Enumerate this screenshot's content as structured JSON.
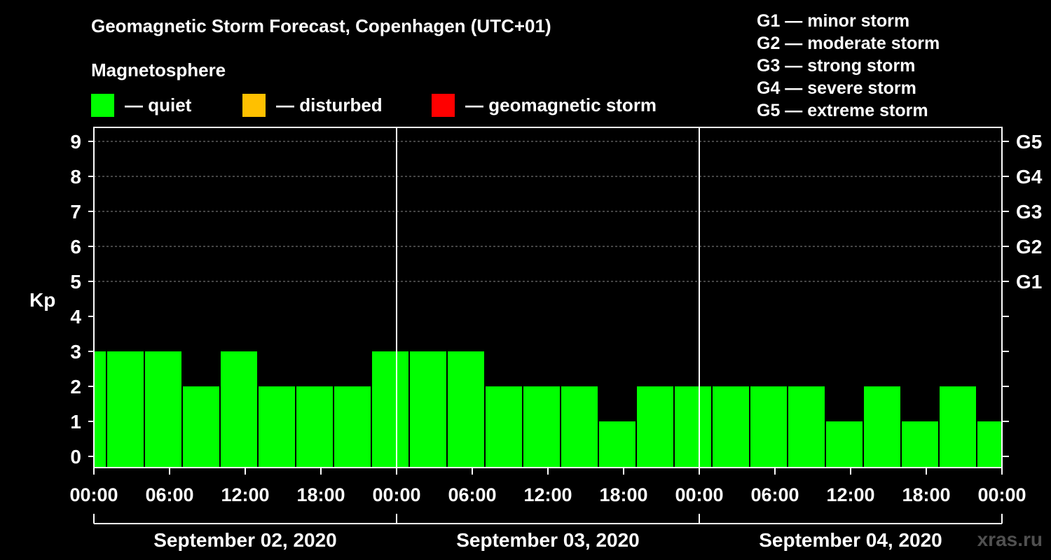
{
  "title": "Geomagnetic Storm Forecast, Copenhagen (UTC+01)",
  "subtitle": "Magnetosphere",
  "legend": [
    {
      "label": "— quiet",
      "color": "#00ff00"
    },
    {
      "label": "— disturbed",
      "color": "#ffc000"
    },
    {
      "label": "— geomagnetic storm",
      "color": "#ff0000"
    }
  ],
  "storm_scale": [
    "G1 — minor storm",
    "G2 — moderate storm",
    "G3 — strong storm",
    "G4 — severe storm",
    "G5 — extreme storm"
  ],
  "watermark": "xras.ru",
  "chart_data": {
    "type": "bar",
    "ylabel": "Kp",
    "ylim": [
      0,
      9
    ],
    "yticks": [
      "0",
      "1",
      "2",
      "3",
      "4",
      "5",
      "6",
      "7",
      "8",
      "9"
    ],
    "right_ticks": [
      {
        "kp": 5,
        "label": "G1"
      },
      {
        "kp": 6,
        "label": "G2"
      },
      {
        "kp": 7,
        "label": "G3"
      },
      {
        "kp": 8,
        "label": "G4"
      },
      {
        "kp": 9,
        "label": "G5"
      }
    ],
    "xticks": [
      "00:00",
      "06:00",
      "12:00",
      "18:00",
      "00:00",
      "06:00",
      "12:00",
      "18:00",
      "00:00",
      "06:00",
      "12:00",
      "18:00",
      "00:00"
    ],
    "days": [
      "September 02, 2020",
      "September 03, 2020",
      "September 04, 2020"
    ],
    "bar_color": "#00ff00",
    "bars": [
      {
        "start_hour": 0,
        "end_hour": 1,
        "value": 3
      },
      {
        "start_hour": 1,
        "end_hour": 4,
        "value": 3
      },
      {
        "start_hour": 4,
        "end_hour": 7,
        "value": 3
      },
      {
        "start_hour": 7,
        "end_hour": 10,
        "value": 2
      },
      {
        "start_hour": 10,
        "end_hour": 13,
        "value": 3
      },
      {
        "start_hour": 13,
        "end_hour": 16,
        "value": 2
      },
      {
        "start_hour": 16,
        "end_hour": 19,
        "value": 2
      },
      {
        "start_hour": 19,
        "end_hour": 22,
        "value": 2
      },
      {
        "start_hour": 22,
        "end_hour": 25,
        "value": 3
      },
      {
        "start_hour": 25,
        "end_hour": 28,
        "value": 3
      },
      {
        "start_hour": 28,
        "end_hour": 31,
        "value": 3
      },
      {
        "start_hour": 31,
        "end_hour": 34,
        "value": 2
      },
      {
        "start_hour": 34,
        "end_hour": 37,
        "value": 2
      },
      {
        "start_hour": 37,
        "end_hour": 40,
        "value": 2
      },
      {
        "start_hour": 40,
        "end_hour": 43,
        "value": 1
      },
      {
        "start_hour": 43,
        "end_hour": 46,
        "value": 2
      },
      {
        "start_hour": 46,
        "end_hour": 49,
        "value": 2
      },
      {
        "start_hour": 49,
        "end_hour": 52,
        "value": 2
      },
      {
        "start_hour": 52,
        "end_hour": 55,
        "value": 2
      },
      {
        "start_hour": 55,
        "end_hour": 58,
        "value": 2
      },
      {
        "start_hour": 58,
        "end_hour": 61,
        "value": 1
      },
      {
        "start_hour": 61,
        "end_hour": 64,
        "value": 2
      },
      {
        "start_hour": 64,
        "end_hour": 67,
        "value": 1
      },
      {
        "start_hour": 67,
        "end_hour": 70,
        "value": 2
      },
      {
        "start_hour": 70,
        "end_hour": 72,
        "value": 1
      }
    ]
  }
}
